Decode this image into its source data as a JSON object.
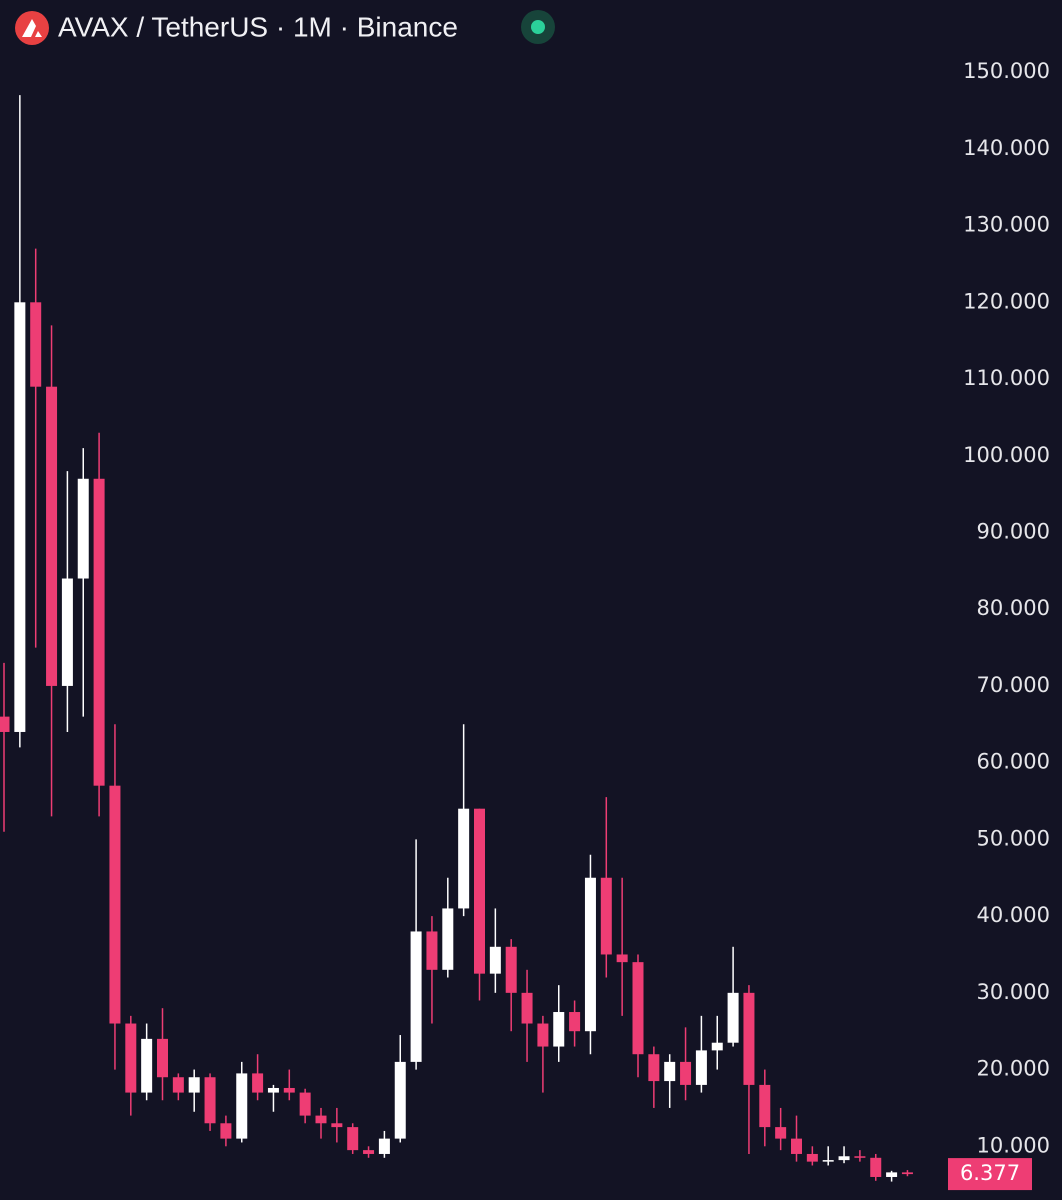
{
  "chart_data": {
    "type": "candlestick",
    "title": "AVAX / TetherUS · 1M · Binance",
    "up_color": "#ffffff",
    "down_color": "#ee3d74",
    "open": [
      66,
      64,
      120,
      109,
      70,
      84,
      97,
      57,
      26,
      17,
      24,
      19,
      17,
      19,
      13,
      11,
      19.5,
      17,
      17.6,
      17,
      14,
      13,
      12.5,
      9.5,
      9,
      11,
      21,
      38,
      33,
      41,
      54,
      32.5,
      36,
      30,
      26,
      23,
      27.5,
      25,
      45,
      35,
      34,
      22,
      18.5,
      21,
      18,
      22.5,
      23.5,
      30,
      18,
      12.5,
      11,
      9,
      8,
      8.2,
      8.7,
      8.5,
      6,
      6.6
    ],
    "high": [
      73,
      147,
      127,
      117,
      98,
      101,
      103,
      65,
      27,
      26,
      28,
      19.5,
      20,
      19.5,
      14,
      21,
      22,
      18,
      20,
      17.5,
      15,
      15,
      13,
      10,
      12,
      24.5,
      50,
      40,
      45,
      65,
      54,
      41,
      37,
      33,
      27,
      31,
      29,
      48,
      55.5,
      45,
      35,
      23,
      22,
      25.5,
      27,
      27,
      36,
      31,
      20,
      15,
      14,
      10,
      10,
      10,
      9.5,
      9,
      6.8,
      6.9
    ],
    "low": [
      51,
      62,
      75,
      53,
      64,
      66,
      53,
      20,
      14,
      16,
      16,
      16,
      14.5,
      12,
      10,
      10.5,
      16,
      14.5,
      16,
      13,
      11,
      10.5,
      9,
      8.5,
      8.5,
      10.5,
      20,
      26,
      32,
      40,
      29,
      30,
      25,
      21,
      17,
      21,
      23,
      22,
      32,
      27,
      19,
      15,
      15,
      16,
      17,
      20,
      23,
      9,
      10,
      9.5,
      8,
      7.5,
      7.5,
      7.8,
      8,
      5.5,
      5.4,
      6.1
    ],
    "close": [
      64,
      120,
      109,
      70,
      84,
      97,
      57,
      26,
      17,
      24,
      19,
      17,
      19,
      13,
      11,
      19.5,
      17,
      17.6,
      17,
      14,
      13,
      12.5,
      9.5,
      9,
      11,
      21,
      38,
      33,
      41,
      54,
      32.5,
      36,
      30,
      26,
      23,
      27.5,
      25,
      45,
      35,
      34,
      22,
      18.5,
      21,
      18,
      22.5,
      23.5,
      30,
      18,
      12.5,
      11,
      9,
      8,
      8.2,
      8.7,
      8.5,
      6,
      6.6,
      6.377
    ],
    "ylim": [
      3,
      159.4
    ],
    "yticks": [
      {
        "value": 150,
        "label": "150.000"
      },
      {
        "value": 140,
        "label": "140.000"
      },
      {
        "value": 130,
        "label": "130.000"
      },
      {
        "value": 120,
        "label": "120.000"
      },
      {
        "value": 110,
        "label": "110.000"
      },
      {
        "value": 100,
        "label": "100.000"
      },
      {
        "value": 90,
        "label": "90.000"
      },
      {
        "value": 80,
        "label": "80.000"
      },
      {
        "value": 70,
        "label": "70.000"
      },
      {
        "value": 60,
        "label": "60.000"
      },
      {
        "value": 50,
        "label": "50.000"
      },
      {
        "value": 40,
        "label": "40.000"
      },
      {
        "value": 30,
        "label": "30.000"
      },
      {
        "value": 20,
        "label": "20.000"
      },
      {
        "value": 10,
        "label": "10.000"
      }
    ],
    "last_price": 6.377
  }
}
